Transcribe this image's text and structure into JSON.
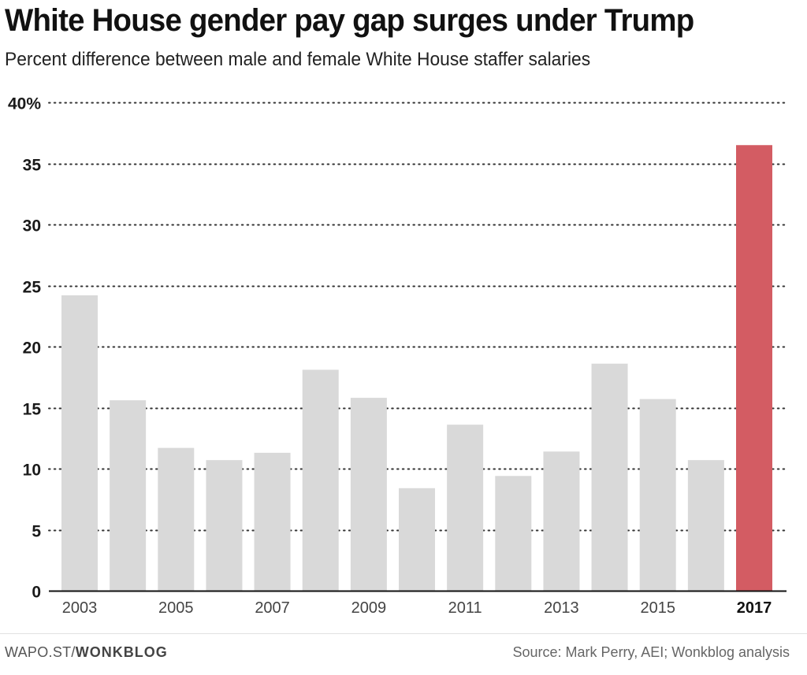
{
  "header": {
    "title": "White House gender pay gap surges under Trump",
    "subtitle": "Percent difference between male and female White House staffer salaries"
  },
  "footer": {
    "brand_prefix": "WAPO.ST/",
    "brand_name": "WONKBLOG",
    "source": "Source: Mark Perry, AEI; Wonkblog analysis"
  },
  "colors": {
    "bar_default": "#d9d9d9",
    "bar_highlight": "#d35c63",
    "gridline": "#333333",
    "axis": "#111111"
  },
  "chart_data": {
    "type": "bar",
    "title": "White House gender pay gap surges under Trump",
    "subtitle": "Percent difference between male and female White House staffer salaries",
    "xlabel": "",
    "ylabel": "",
    "categories": [
      "2003",
      "2004",
      "2005",
      "2006",
      "2007",
      "2008",
      "2009",
      "2010",
      "2011",
      "2012",
      "2013",
      "2014",
      "2015",
      "2016",
      "2017"
    ],
    "values": [
      24.2,
      15.6,
      11.7,
      10.7,
      11.3,
      18.1,
      15.8,
      8.4,
      13.6,
      9.4,
      11.4,
      18.6,
      15.7,
      10.7,
      36.5
    ],
    "highlight": "2017",
    "ylim": [
      0,
      40
    ],
    "yticks": [
      0,
      5,
      10,
      15,
      20,
      25,
      30,
      35,
      40
    ],
    "ytick_labels": [
      "0",
      "5",
      "10",
      "15",
      "20",
      "25",
      "30",
      "35",
      "40%"
    ],
    "xtick_labels": [
      "2003",
      "2005",
      "2007",
      "2009",
      "2011",
      "2013",
      "2015",
      "2017"
    ],
    "grid": true,
    "grid_style": "dotted",
    "legend": "none"
  }
}
